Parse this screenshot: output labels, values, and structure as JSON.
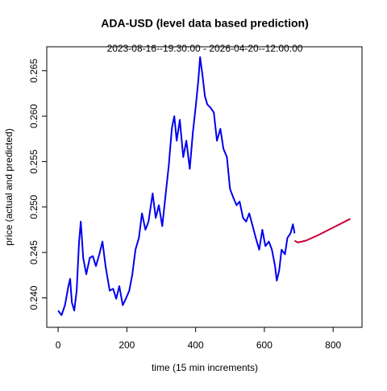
{
  "chart_data": {
    "type": "line",
    "title": "ADA-USD (level data based prediction)",
    "subtitle": "2023-08-16--19:30:00  -  2026-04-20--12:00:00",
    "xlabel": "time (15 min increments)",
    "ylabel": "price (actual and predicted)",
    "xlim": [
      -33,
      884
    ],
    "ylim": [
      0.23676,
      0.26764
    ],
    "xticks": [
      0,
      200,
      400,
      600,
      800
    ],
    "yticks": [
      {
        "value": 0.24,
        "label": "0.240"
      },
      {
        "value": 0.245,
        "label": "0.245"
      },
      {
        "value": 0.25,
        "label": "0.250"
      },
      {
        "value": 0.255,
        "label": "0.255"
      },
      {
        "value": 0.26,
        "label": "0.260"
      },
      {
        "value": 0.265,
        "label": "0.265"
      }
    ],
    "series": [
      {
        "name": "actual",
        "color": "#0000ee",
        "x": [
          0,
          10,
          20,
          30,
          35,
          40,
          47,
          54,
          61,
          66,
          73,
          82,
          92,
          101,
          110,
          120,
          129,
          138,
          150,
          160,
          169,
          178,
          188,
          197,
          207,
          216,
          225,
          235,
          244,
          254,
          263,
          275,
          284,
          293,
          303,
          312,
          322,
          331,
          338,
          345,
          354,
          364,
          373,
          383,
          392,
          401,
          408,
          413,
          420,
          427,
          434,
          444,
          453,
          462,
          472,
          481,
          491,
          500,
          509,
          519,
          528,
          538,
          547,
          556,
          566,
          575,
          585,
          594,
          603,
          613,
          622,
          631,
          636,
          643,
          650,
          660,
          667,
          676,
          683,
          688
        ],
        "values": [
          0.2386,
          0.2381,
          0.2392,
          0.2413,
          0.2421,
          0.2395,
          0.2386,
          0.2408,
          0.2462,
          0.2484,
          0.2444,
          0.2426,
          0.2444,
          0.2446,
          0.2435,
          0.2448,
          0.2462,
          0.2435,
          0.2408,
          0.241,
          0.2399,
          0.2413,
          0.2392,
          0.2399,
          0.2408,
          0.2426,
          0.2453,
          0.2466,
          0.2493,
          0.2475,
          0.2484,
          0.2515,
          0.2488,
          0.2502,
          0.2479,
          0.2511,
          0.2546,
          0.2587,
          0.26,
          0.2573,
          0.2596,
          0.2555,
          0.2573,
          0.2542,
          0.2582,
          0.2613,
          0.264,
          0.2665,
          0.2645,
          0.2622,
          0.2613,
          0.2609,
          0.2604,
          0.2573,
          0.2586,
          0.2564,
          0.2555,
          0.252,
          0.2511,
          0.2502,
          0.2506,
          0.2488,
          0.2484,
          0.2493,
          0.2479,
          0.2466,
          0.2453,
          0.2475,
          0.2457,
          0.2462,
          0.2453,
          0.2435,
          0.2419,
          0.243,
          0.2453,
          0.2448,
          0.2466,
          0.2471,
          0.2481,
          0.2471
        ]
      },
      {
        "name": "predicted",
        "color": "#cc0033",
        "x": [
          688,
          697,
          721,
          756,
          803,
          850
        ],
        "values": [
          0.2463,
          0.2461,
          0.2463,
          0.2469,
          0.2478,
          0.2487
        ]
      }
    ]
  }
}
